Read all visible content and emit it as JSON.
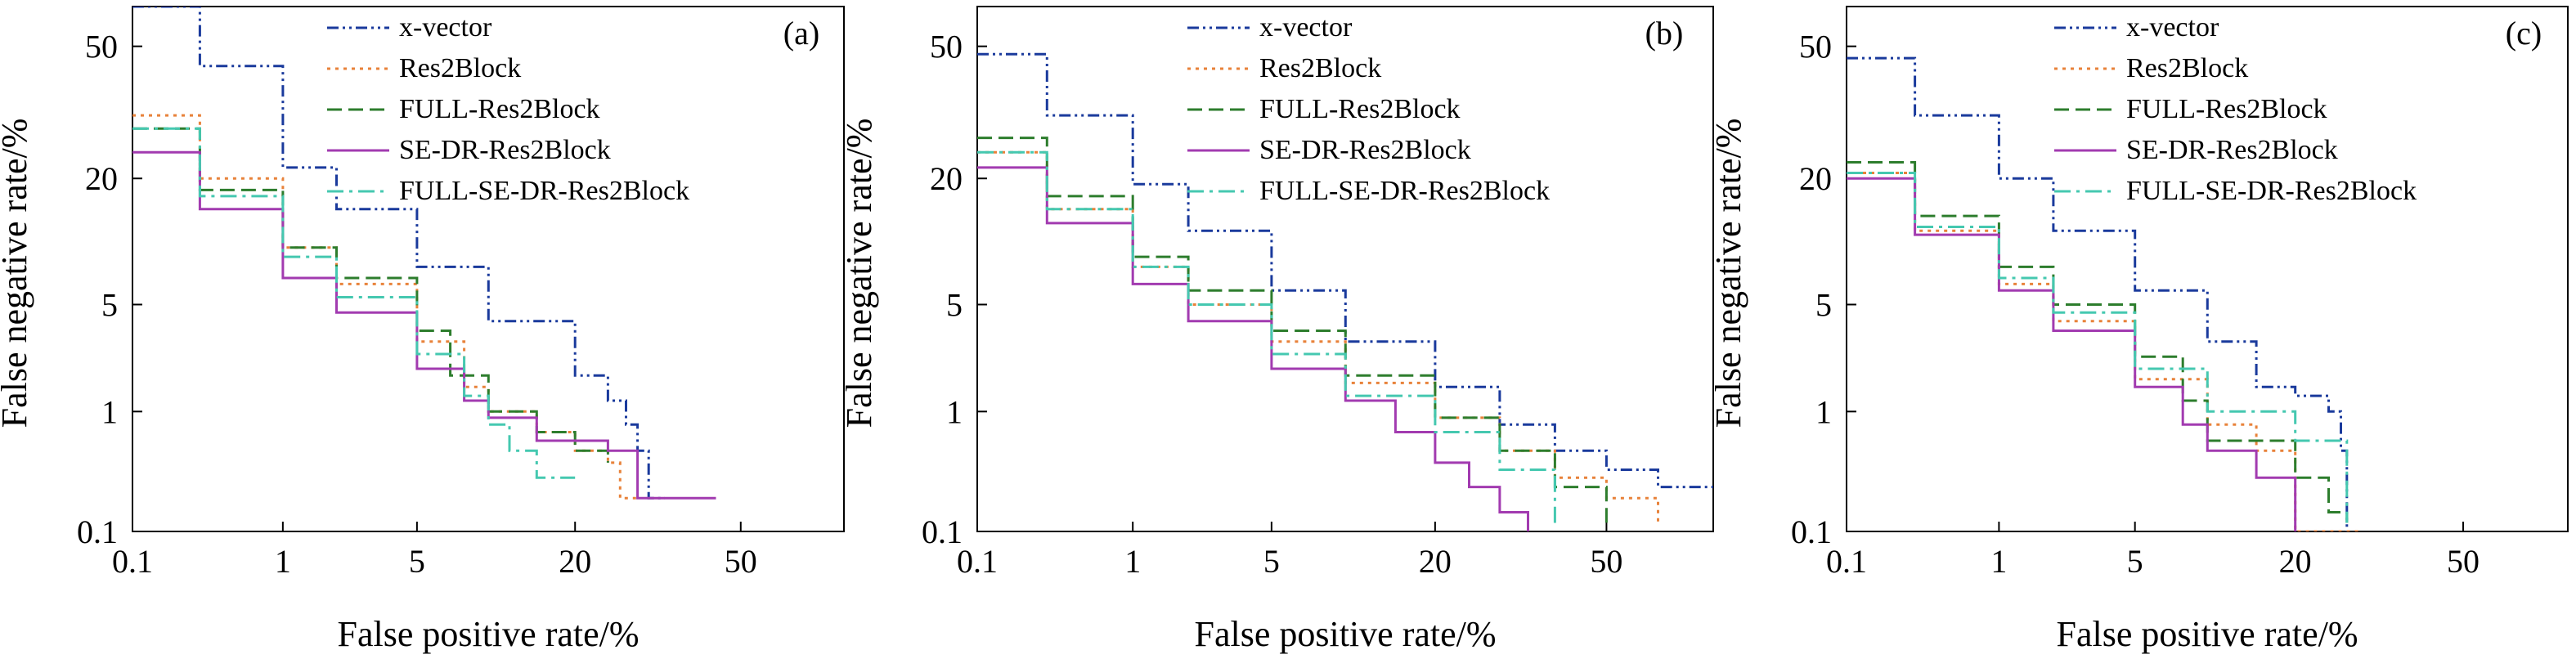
{
  "figure": {
    "colors": {
      "x-vector": "#1a3a9c",
      "Res2Block": "#e8823a",
      "FULL-Res2Block": "#2d7d2d",
      "SE-DR-Res2Block": "#a23bb0",
      "FULL-SE-DR-Res2Block": "#45c8b0"
    },
    "dash_styles": {
      "x-vector": "dash-dot-dot",
      "Res2Block": "dotted",
      "FULL-Res2Block": "dashed",
      "SE-DR-Res2Block": "solid",
      "FULL-SE-DR-Res2Block": "dash-dot"
    }
  },
  "chart_data": [
    {
      "type": "line",
      "panel_label": "(a)",
      "xlabel": "False positive rate/%",
      "ylabel": "False negative rate/%",
      "xscale": "normal-deviate",
      "yscale": "normal-deviate",
      "xticks": [
        "0.1",
        "1",
        "5",
        "20",
        "50"
      ],
      "yticks": [
        "0.1",
        "1",
        "5",
        "20",
        "50"
      ],
      "xlim": [
        0.1,
        70
      ],
      "ylim": [
        0.1,
        60
      ],
      "grid": false,
      "legend_position": "top-center",
      "series": [
        {
          "name": "x-vector",
          "x": [
            0.1,
            0.3,
            1,
            2,
            5,
            10,
            20,
            25,
            28,
            30,
            32,
            35
          ],
          "y": [
            60,
            45,
            22,
            15,
            8,
            4,
            1.8,
            1.2,
            0.8,
            0.5,
            0.2,
            0.2
          ]
        },
        {
          "name": "Res2Block",
          "x": [
            0.1,
            0.3,
            1,
            2,
            5,
            8,
            10,
            15,
            20,
            25,
            27,
            30
          ],
          "y": [
            33,
            20,
            10,
            6.5,
            3,
            1.5,
            1,
            0.7,
            0.5,
            0.4,
            0.2,
            0.2
          ]
        },
        {
          "name": "FULL-Res2Block",
          "x": [
            0.1,
            0.3,
            1,
            2,
            5,
            7,
            10,
            15,
            20,
            25
          ],
          "y": [
            30,
            18,
            10,
            7,
            3.5,
            1.8,
            1,
            0.7,
            0.5,
            0.4
          ]
        },
        {
          "name": "SE-DR-Res2Block",
          "x": [
            0.1,
            0.3,
            1,
            2,
            5,
            8,
            10,
            15,
            25,
            30,
            45
          ],
          "y": [
            25,
            15,
            7,
            4.5,
            2,
            1.2,
            0.9,
            0.6,
            0.5,
            0.2,
            0.2
          ]
        },
        {
          "name": "FULL-SE-DR-Res2Block",
          "x": [
            0.1,
            0.3,
            1,
            2,
            5,
            8,
            10,
            12,
            15,
            20
          ],
          "y": [
            30,
            17,
            9,
            5.5,
            2.5,
            1.3,
            0.8,
            0.5,
            0.3,
            0.3
          ]
        }
      ]
    },
    {
      "type": "line",
      "panel_label": "(b)",
      "xlabel": "False positive rate/%",
      "ylabel": "False negative rate/%",
      "xscale": "normal-deviate",
      "yscale": "normal-deviate",
      "xticks": [
        "0.1",
        "1",
        "5",
        "20",
        "50"
      ],
      "yticks": [
        "0.1",
        "1",
        "5",
        "20",
        "50"
      ],
      "xlim": [
        0.1,
        70
      ],
      "ylim": [
        0.1,
        60
      ],
      "grid": false,
      "legend_position": "top-center",
      "series": [
        {
          "name": "x-vector",
          "x": [
            0.1,
            0.3,
            1,
            2,
            5,
            10,
            20,
            30,
            40,
            50,
            60,
            70
          ],
          "y": [
            48,
            33,
            19,
            12,
            6,
            3,
            1.5,
            0.8,
            0.5,
            0.35,
            0.25,
            0.25
          ]
        },
        {
          "name": "Res2Block",
          "x": [
            0.1,
            0.3,
            1,
            2,
            5,
            10,
            20,
            30,
            40,
            50,
            60
          ],
          "y": [
            25,
            15,
            8,
            5,
            3,
            1.6,
            0.9,
            0.5,
            0.3,
            0.2,
            0.12
          ]
        },
        {
          "name": "FULL-Res2Block",
          "x": [
            0.1,
            0.3,
            1,
            2,
            5,
            10,
            20,
            30,
            40,
            50
          ],
          "y": [
            28,
            17,
            9,
            6,
            3.5,
            1.8,
            0.9,
            0.5,
            0.25,
            0.12
          ]
        },
        {
          "name": "SE-DR-Res2Block",
          "x": [
            0.1,
            0.3,
            1,
            2,
            5,
            10,
            15,
            20,
            25,
            30,
            35
          ],
          "y": [
            22,
            13,
            6.5,
            4,
            2,
            1.2,
            0.7,
            0.4,
            0.25,
            0.15,
            0.1
          ]
        },
        {
          "name": "FULL-SE-DR-Res2Block",
          "x": [
            0.1,
            0.3,
            1,
            2,
            5,
            10,
            20,
            30,
            40
          ],
          "y": [
            25,
            15,
            8,
            5,
            2.5,
            1.3,
            0.7,
            0.35,
            0.12
          ]
        }
      ]
    },
    {
      "type": "line",
      "panel_label": "(c)",
      "xlabel": "False positive rate/%",
      "ylabel": "False negative rate/%",
      "xscale": "normal-deviate",
      "yscale": "normal-deviate",
      "xticks": [
        "0.1",
        "1",
        "5",
        "20",
        "50"
      ],
      "yticks": [
        "0.1",
        "1",
        "5",
        "20",
        "50"
      ],
      "xlim": [
        0.1,
        70
      ],
      "ylim": [
        0.1,
        60
      ],
      "grid": false,
      "legend_position": "top-center",
      "series": [
        {
          "name": "x-vector",
          "x": [
            0.1,
            0.3,
            1,
            2,
            5,
            10,
            15,
            20,
            25,
            27,
            28
          ],
          "y": [
            47,
            33,
            20,
            12,
            6,
            3,
            1.5,
            1.3,
            1,
            0.5,
            0.1
          ]
        },
        {
          "name": "Res2Block",
          "x": [
            0.1,
            0.3,
            1,
            2,
            5,
            10,
            15,
            20,
            30
          ],
          "y": [
            21,
            12,
            6.5,
            4,
            1.7,
            0.8,
            0.5,
            0.1,
            0.1
          ]
        },
        {
          "name": "FULL-Res2Block",
          "x": [
            0.1,
            0.3,
            1,
            2,
            5,
            8,
            10,
            15,
            20,
            25,
            28
          ],
          "y": [
            23,
            14,
            8,
            5,
            2.4,
            1.2,
            0.6,
            0.6,
            0.3,
            0.15,
            0.12
          ]
        },
        {
          "name": "SE-DR-Res2Block",
          "x": [
            0.1,
            0.3,
            1,
            2,
            5,
            8,
            10,
            15,
            20
          ],
          "y": [
            20,
            11.5,
            6,
            3.5,
            1.5,
            0.8,
            0.5,
            0.3,
            0.1
          ]
        },
        {
          "name": "FULL-SE-DR-Res2Block",
          "x": [
            0.1,
            0.3,
            1,
            2,
            5,
            10,
            20,
            25,
            28
          ],
          "y": [
            21,
            12.5,
            7,
            4.5,
            2,
            1,
            0.6,
            0.6,
            0.12
          ]
        }
      ]
    }
  ]
}
